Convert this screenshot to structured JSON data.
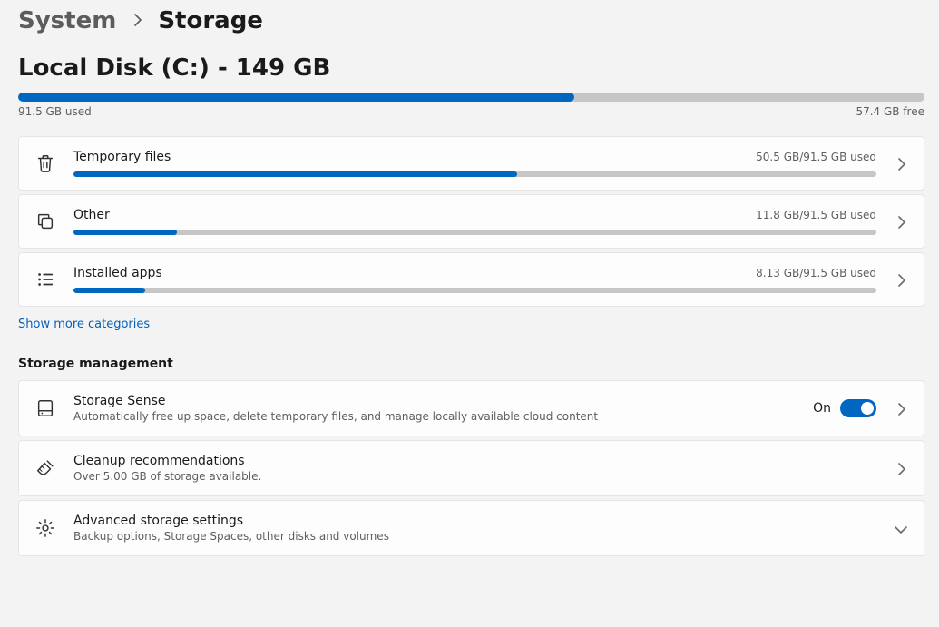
{
  "colors": {
    "accent": "#0067c0",
    "bar_bg": "#c6c6c6",
    "link": "#0760b8"
  },
  "breadcrumb": {
    "parent": "System",
    "current": "Storage"
  },
  "disk": {
    "title": "Local Disk (C:) - 149 GB",
    "used_label": "91.5 GB used",
    "free_label": "57.4 GB free",
    "used_gb": 91.5,
    "total_gb": 149,
    "fill_percent": 61.4
  },
  "categories": [
    {
      "id": "temporary-files",
      "icon": "trash-icon",
      "title": "Temporary files",
      "usage_label": "50.5 GB/91.5 GB used",
      "used_gb": 50.5,
      "total_gb": 91.5,
      "fill_percent": 55.2
    },
    {
      "id": "other",
      "icon": "copy-icon",
      "title": "Other",
      "usage_label": "11.8 GB/91.5 GB used",
      "used_gb": 11.8,
      "total_gb": 91.5,
      "fill_percent": 12.9
    },
    {
      "id": "installed-apps",
      "icon": "apps-list-icon",
      "title": "Installed apps",
      "usage_label": "8.13 GB/91.5 GB used",
      "used_gb": 8.13,
      "total_gb": 91.5,
      "fill_percent": 8.9
    }
  ],
  "show_more_label": "Show more categories",
  "management_heading": "Storage management",
  "management": [
    {
      "id": "storage-sense",
      "icon": "drive-icon",
      "title": "Storage Sense",
      "subtitle": "Automatically free up space, delete temporary files, and manage locally available cloud content",
      "toggle": {
        "state_label": "On",
        "on": true
      },
      "trailing": "chevron-right"
    },
    {
      "id": "cleanup-recommendations",
      "icon": "broom-icon",
      "title": "Cleanup recommendations",
      "subtitle": "Over 5.00 GB of storage available.",
      "trailing": "chevron-right"
    },
    {
      "id": "advanced-storage-settings",
      "icon": "gear-icon",
      "title": "Advanced storage settings",
      "subtitle": "Backup options, Storage Spaces, other disks and volumes",
      "trailing": "chevron-down"
    }
  ]
}
